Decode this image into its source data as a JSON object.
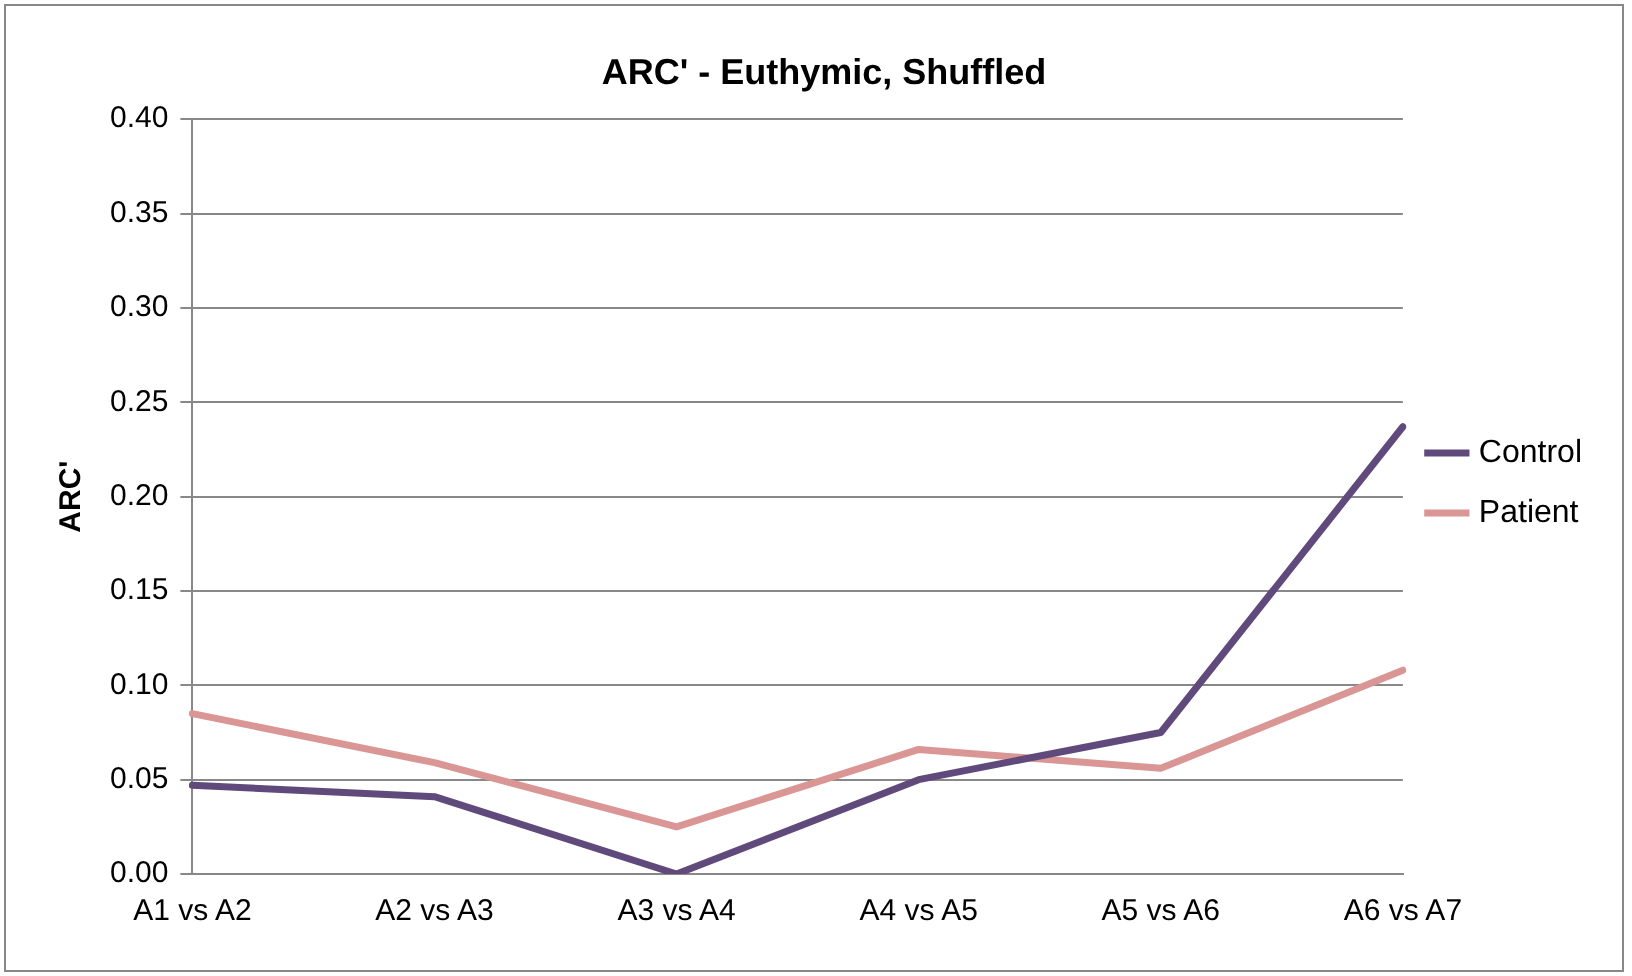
{
  "chart_data": {
    "type": "line",
    "title": "ARC' - Euthymic, Shuffled",
    "ylabel": "ARC'",
    "categories": [
      "A1 vs A2",
      "A2 vs A3",
      "A3 vs A4",
      "A4 vs A5",
      "A5 vs A6",
      "A6 vs A7"
    ],
    "series": [
      {
        "name": "Control",
        "color": "#604a7b",
        "values": [
          0.047,
          0.041,
          0.0,
          0.05,
          0.075,
          0.237
        ]
      },
      {
        "name": "Patient",
        "color": "#d99694",
        "values": [
          0.085,
          0.059,
          0.025,
          0.066,
          0.056,
          0.108
        ]
      }
    ],
    "ylim": [
      0,
      0.4
    ],
    "yticks": [
      {
        "value": 0,
        "label": "0.00"
      },
      {
        "value": 0.05,
        "label": "0.05"
      },
      {
        "value": 0.1,
        "label": "0.10"
      },
      {
        "value": 0.15,
        "label": "0.15"
      },
      {
        "value": 0.2,
        "label": "0.20"
      },
      {
        "value": 0.25,
        "label": "0.25"
      },
      {
        "value": 0.3,
        "label": "0.30"
      },
      {
        "value": 0.35,
        "label": "0.35"
      },
      {
        "value": 0.4,
        "label": "0.40"
      }
    ],
    "grid": "y",
    "legend": "right",
    "marker": "none",
    "line_style": "solid"
  }
}
